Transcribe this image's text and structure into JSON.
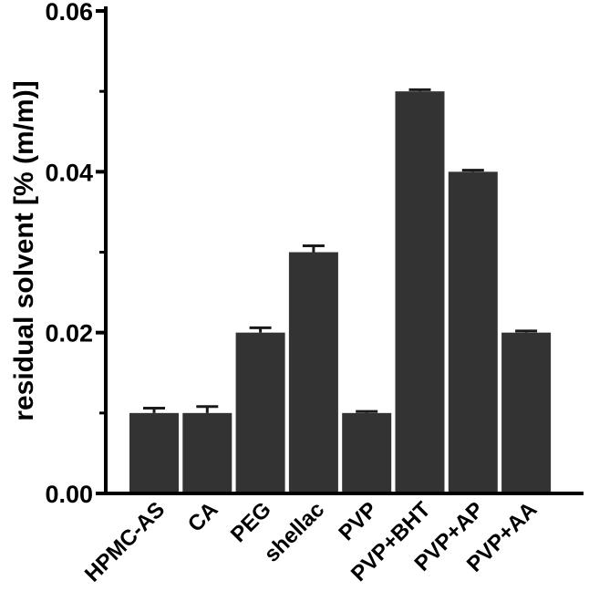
{
  "chart_data": {
    "type": "bar",
    "title": "",
    "xlabel": "",
    "ylabel": "residual solvent [% (m/m)]",
    "ylim": [
      0,
      0.06
    ],
    "yticks": [
      "0.00",
      "0.02",
      "0.04",
      "0.06"
    ],
    "categories": [
      "HPMC-AS",
      "CA",
      "PEG",
      "shellac",
      "PVP",
      "PVP+BHT",
      "PVP+AP",
      "PVP+AA"
    ],
    "values": [
      0.01,
      0.01,
      0.02,
      0.03,
      0.01,
      0.05,
      0.04,
      0.02
    ],
    "errors": [
      0.0006,
      0.0008,
      0.0006,
      0.0008,
      0.0002,
      0.0002,
      0.0002,
      0.0002
    ],
    "grid": false,
    "bar_color": "#333333"
  }
}
